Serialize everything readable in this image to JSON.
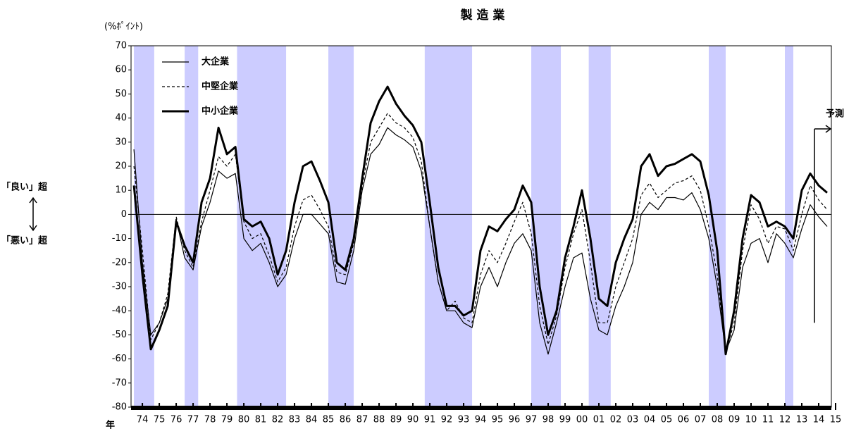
{
  "chart_data": {
    "type": "line",
    "title": "製 造 業",
    "y_unit": "(%ﾎﾟｲﾝﾄ)",
    "x_unit": "年",
    "upper_note": "「良い」超",
    "lower_note": "「悪い」超",
    "forecast": {
      "label": "予測",
      "x": 2014.25
    },
    "xlim": [
      1973.83,
      2015.25
    ],
    "ylim": [
      -80,
      70
    ],
    "yticks": [
      -80,
      -70,
      -60,
      -50,
      -40,
      -30,
      -20,
      -10,
      0,
      10,
      20,
      30,
      40,
      50,
      60,
      70
    ],
    "xticks": [
      {
        "value": 1974.5,
        "label": "74"
      },
      {
        "value": 1975.5,
        "label": "75"
      },
      {
        "value": 1976.5,
        "label": "76"
      },
      {
        "value": 1977.5,
        "label": "77"
      },
      {
        "value": 1978.5,
        "label": "78"
      },
      {
        "value": 1979.5,
        "label": "79"
      },
      {
        "value": 1980.5,
        "label": "80"
      },
      {
        "value": 1981.5,
        "label": "81"
      },
      {
        "value": 1982.5,
        "label": "82"
      },
      {
        "value": 1983.5,
        "label": "83"
      },
      {
        "value": 1984.5,
        "label": "84"
      },
      {
        "value": 1985.5,
        "label": "85"
      },
      {
        "value": 1986.5,
        "label": "86"
      },
      {
        "value": 1987.5,
        "label": "87"
      },
      {
        "value": 1988.5,
        "label": "88"
      },
      {
        "value": 1989.5,
        "label": "89"
      },
      {
        "value": 1990.5,
        "label": "90"
      },
      {
        "value": 1991.5,
        "label": "91"
      },
      {
        "value": 1992.5,
        "label": "92"
      },
      {
        "value": 1993.5,
        "label": "93"
      },
      {
        "value": 1994.5,
        "label": "94"
      },
      {
        "value": 1995.5,
        "label": "95"
      },
      {
        "value": 1996.5,
        "label": "96"
      },
      {
        "value": 1997.5,
        "label": "97"
      },
      {
        "value": 1998.5,
        "label": "98"
      },
      {
        "value": 1999.5,
        "label": "99"
      },
      {
        "value": 2000.5,
        "label": "00"
      },
      {
        "value": 2001.5,
        "label": "01"
      },
      {
        "value": 2002.5,
        "label": "02"
      },
      {
        "value": 2003.5,
        "label": "03"
      },
      {
        "value": 2004.5,
        "label": "04"
      },
      {
        "value": 2005.5,
        "label": "05"
      },
      {
        "value": 2006.5,
        "label": "06"
      },
      {
        "value": 2007.5,
        "label": "07"
      },
      {
        "value": 2008.5,
        "label": "08"
      },
      {
        "value": 2009.5,
        "label": "09"
      },
      {
        "value": 2010.5,
        "label": "10"
      },
      {
        "value": 2011.5,
        "label": "11"
      },
      {
        "value": 2012.5,
        "label": "12"
      },
      {
        "value": 2013.5,
        "label": "13"
      },
      {
        "value": 2014.5,
        "label": "14"
      },
      {
        "value": 2015.5,
        "label": "15"
      }
    ],
    "shading": {
      "color": "#ccccff",
      "ranges": [
        [
          1974.0,
          1975.2
        ],
        [
          1977.0,
          1977.8
        ],
        [
          1980.1,
          1983.0
        ],
        [
          1985.5,
          1987.0
        ],
        [
          1991.2,
          1994.0
        ],
        [
          1997.5,
          1999.25
        ],
        [
          2000.9,
          2002.2
        ],
        [
          2008.0,
          2009.0
        ],
        [
          2012.5,
          2013.0
        ]
      ]
    },
    "x": [
      1974.0,
      1974.5,
      1975.0,
      1975.5,
      1976.0,
      1976.5,
      1977.0,
      1977.5,
      1978.0,
      1978.5,
      1979.0,
      1979.5,
      1980.0,
      1980.5,
      1981.0,
      1981.5,
      1982.0,
      1982.5,
      1983.0,
      1983.5,
      1984.0,
      1984.5,
      1985.0,
      1985.5,
      1986.0,
      1986.5,
      1987.0,
      1987.5,
      1988.0,
      1988.5,
      1989.0,
      1989.5,
      1990.0,
      1990.5,
      1991.0,
      1991.5,
      1992.0,
      1992.5,
      1993.0,
      1993.5,
      1994.0,
      1994.5,
      1995.0,
      1995.5,
      1996.0,
      1996.5,
      1997.0,
      1997.5,
      1998.0,
      1998.5,
      1999.0,
      1999.5,
      2000.0,
      2000.5,
      2001.0,
      2001.5,
      2002.0,
      2002.5,
      2003.0,
      2003.5,
      2004.0,
      2004.5,
      2005.0,
      2005.5,
      2006.0,
      2006.5,
      2007.0,
      2007.5,
      2008.0,
      2008.5,
      2009.0,
      2009.5,
      2010.0,
      2010.5,
      2011.0,
      2011.5,
      2012.0,
      2012.5,
      2013.0,
      2013.5,
      2014.0,
      2014.5,
      2015.0
    ],
    "series": [
      {
        "name": "大企業",
        "color": "#000000",
        "style": "thin",
        "values": [
          27,
          -20,
          -50,
          -45,
          -35,
          -2,
          -18,
          -23,
          -5,
          5,
          18,
          15,
          17,
          -10,
          -15,
          -12,
          -20,
          -30,
          -25,
          -10,
          0,
          0,
          -4,
          -8,
          -28,
          -29,
          -15,
          10,
          25,
          29,
          36,
          33,
          31,
          28,
          18,
          -5,
          -28,
          -40,
          -40,
          -45,
          -47,
          -30,
          -22,
          -30,
          -20,
          -12,
          -8,
          -15,
          -45,
          -58,
          -45,
          -30,
          -18,
          -16,
          -35,
          -48,
          -50,
          -38,
          -30,
          -20,
          0,
          5,
          2,
          7,
          7,
          6,
          9,
          2,
          -10,
          -30,
          -57,
          -48,
          -22,
          -12,
          -10,
          -20,
          -8,
          -12,
          -18,
          -6,
          4,
          -1,
          -5
        ]
      },
      {
        "name": "中堅企業",
        "color": "#000000",
        "style": "dashed",
        "values": [
          20,
          -15,
          -52,
          -45,
          -33,
          -1,
          -15,
          -22,
          -3,
          10,
          24,
          20,
          25,
          -3,
          -10,
          -8,
          -17,
          -28,
          -22,
          -5,
          6,
          8,
          2,
          -5,
          -24,
          -25,
          -12,
          12,
          30,
          36,
          42,
          38,
          36,
          32,
          22,
          -5,
          -28,
          -40,
          -36,
          -43,
          -45,
          -25,
          -15,
          -20,
          -12,
          -3,
          5,
          -8,
          -38,
          -54,
          -42,
          -22,
          -8,
          2,
          -20,
          -45,
          -45,
          -30,
          -20,
          -10,
          8,
          13,
          7,
          10,
          13,
          14,
          16,
          10,
          -5,
          -25,
          -57,
          -45,
          -15,
          4,
          -2,
          -12,
          -5,
          -6,
          -15,
          0,
          12,
          6,
          2
        ]
      },
      {
        "name": "中小企業",
        "color": "#000000",
        "style": "thick",
        "values": [
          12,
          -25,
          -56,
          -48,
          -38,
          -3,
          -13,
          -20,
          5,
          15,
          36,
          25,
          28,
          -2,
          -5,
          -3,
          -10,
          -25,
          -15,
          5,
          20,
          22,
          14,
          5,
          -20,
          -23,
          -10,
          15,
          38,
          47,
          53,
          46,
          41,
          37,
          30,
          5,
          -22,
          -38,
          -38,
          -42,
          -40,
          -15,
          -5,
          -7,
          -2,
          2,
          12,
          5,
          -30,
          -50,
          -40,
          -18,
          -5,
          10,
          -10,
          -35,
          -38,
          -20,
          -10,
          -2,
          20,
          25,
          16,
          20,
          21,
          23,
          25,
          22,
          8,
          -15,
          -58,
          -40,
          -10,
          8,
          5,
          -5,
          -3,
          -5,
          -10,
          10,
          17,
          12,
          9
        ]
      }
    ]
  }
}
